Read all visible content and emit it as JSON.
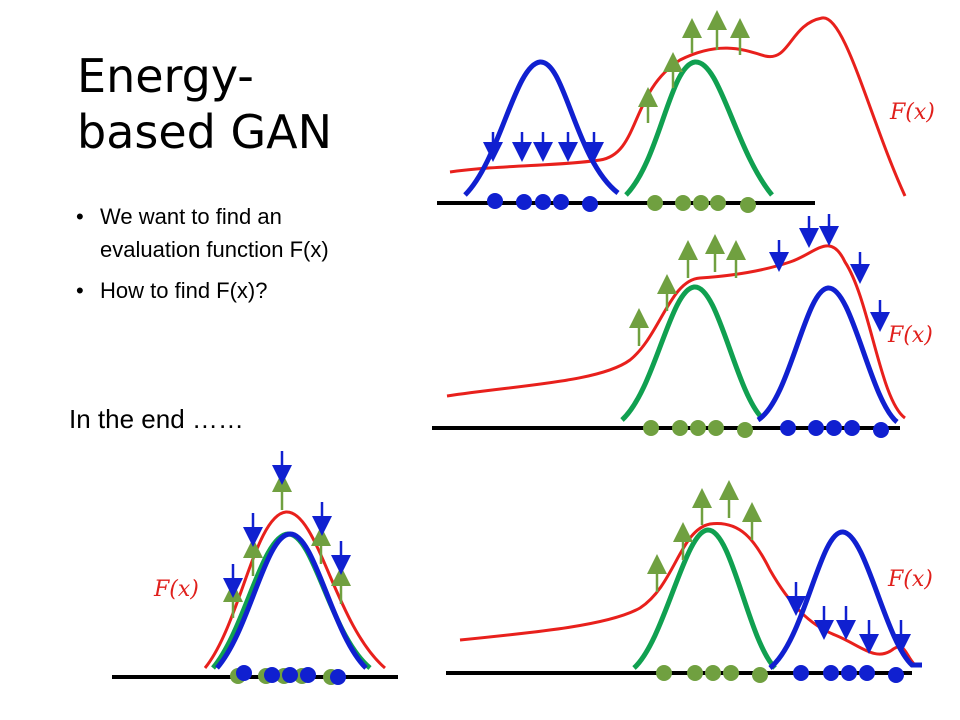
{
  "slide": {
    "title_line1": "Energy-",
    "title_line2": "based GAN",
    "bullets": [
      "We want to find an evaluation function F(x)",
      "How to find F(x)?"
    ],
    "note": "In the end ……"
  },
  "diagram": {
    "function_label": "F(x)",
    "colors": {
      "evaluation_curve": "#e8201c",
      "generated": "#1020d0",
      "real": "#10a050",
      "up_arrow": "#70a040",
      "down_arrow": "#1020d0",
      "axis": "#000000"
    }
  }
}
